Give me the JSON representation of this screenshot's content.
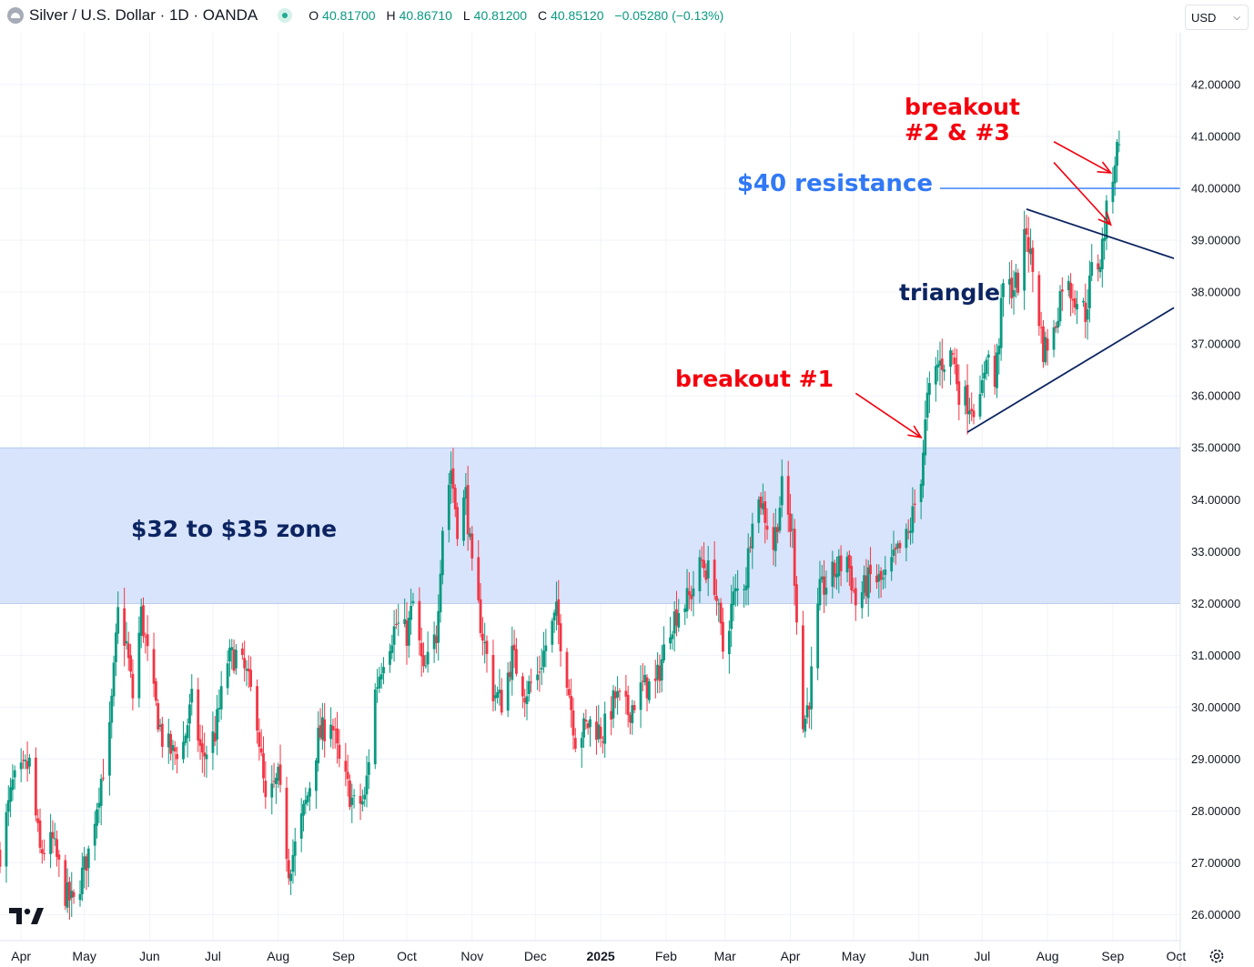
{
  "header": {
    "symbol_icon": "silver-coin-icon",
    "title": "Silver / U.S. Dollar · 1D · OANDA",
    "ohlc": {
      "o_label": "O",
      "o": "40.81700",
      "h_label": "H",
      "h": "40.86710",
      "l_label": "L",
      "l": "40.81200",
      "c_label": "C",
      "c": "40.85120",
      "change": "−0.05280 (−0.13%)"
    }
  },
  "currency_select": {
    "value": "USD"
  },
  "colors": {
    "up": "#089981",
    "down": "#f23645",
    "zone": "#d6e3fb",
    "resistance": "#3179f5",
    "annotation_red": "#f4000d",
    "annotation_navy": "#0c2461"
  },
  "chart_data": {
    "type": "candlestick",
    "instrument": "Silver / U.S. Dollar",
    "interval": "1D",
    "ylim": [
      25.5,
      43.0
    ],
    "x_range": [
      "2024-03-22",
      "2025-10-03"
    ],
    "y_ticks": [
      "42.00000",
      "41.00000",
      "40.00000",
      "39.00000",
      "38.00000",
      "37.00000",
      "36.00000",
      "35.00000",
      "34.00000",
      "33.00000",
      "32.00000",
      "31.00000",
      "30.00000",
      "29.00000",
      "28.00000",
      "27.00000",
      "26.00000"
    ],
    "x_ticks": [
      {
        "label": "Apr",
        "date": "2024-04-01"
      },
      {
        "label": "May",
        "date": "2024-05-01"
      },
      {
        "label": "Jun",
        "date": "2024-06-01"
      },
      {
        "label": "Jul",
        "date": "2024-07-01"
      },
      {
        "label": "Aug",
        "date": "2024-08-01"
      },
      {
        "label": "Sep",
        "date": "2024-09-01"
      },
      {
        "label": "Oct",
        "date": "2024-10-01"
      },
      {
        "label": "Nov",
        "date": "2024-11-01"
      },
      {
        "label": "Dec",
        "date": "2024-12-01"
      },
      {
        "label": "2025",
        "date": "2025-01-01",
        "bold": true
      },
      {
        "label": "Feb",
        "date": "2025-02-01"
      },
      {
        "label": "Mar",
        "date": "2025-03-01"
      },
      {
        "label": "Apr",
        "date": "2025-04-01"
      },
      {
        "label": "May",
        "date": "2025-05-01"
      },
      {
        "label": "Jun",
        "date": "2025-06-01"
      },
      {
        "label": "Jul",
        "date": "2025-07-01"
      },
      {
        "label": "Aug",
        "date": "2025-08-01"
      },
      {
        "label": "Sep",
        "date": "2025-09-01"
      },
      {
        "label": "Oct",
        "date": "2025-10-01"
      }
    ],
    "price_path": [
      [
        "2024-03-22",
        27.2
      ],
      [
        "2024-03-28",
        28.5
      ],
      [
        "2024-04-05",
        28.9
      ],
      [
        "2024-04-10",
        27.2
      ],
      [
        "2024-04-16",
        27.4
      ],
      [
        "2024-04-22",
        26.4
      ],
      [
        "2024-04-26",
        26.2
      ],
      [
        "2024-05-03",
        27.2
      ],
      [
        "2024-05-08",
        28.4
      ],
      [
        "2024-05-13",
        29.5
      ],
      [
        "2024-05-17",
        31.8
      ],
      [
        "2024-05-21",
        31.2
      ],
      [
        "2024-05-24",
        30.2
      ],
      [
        "2024-05-28",
        31.8
      ],
      [
        "2024-06-03",
        30.2
      ],
      [
        "2024-06-07",
        29.4
      ],
      [
        "2024-06-12",
        29.1
      ],
      [
        "2024-06-17",
        29.3
      ],
      [
        "2024-06-21",
        30.1
      ],
      [
        "2024-06-26",
        29.0
      ],
      [
        "2024-07-02",
        29.5
      ],
      [
        "2024-07-08",
        30.9
      ],
      [
        "2024-07-12",
        31.0
      ],
      [
        "2024-07-17",
        30.6
      ],
      [
        "2024-07-22",
        29.8
      ],
      [
        "2024-07-26",
        28.1
      ],
      [
        "2024-08-01",
        28.6
      ],
      [
        "2024-08-06",
        26.9
      ],
      [
        "2024-08-09",
        27.3
      ],
      [
        "2024-08-15",
        28.3
      ],
      [
        "2024-08-20",
        29.4
      ],
      [
        "2024-08-26",
        29.8
      ],
      [
        "2024-08-30",
        28.9
      ],
      [
        "2024-09-06",
        28.1
      ],
      [
        "2024-09-11",
        28.2
      ],
      [
        "2024-09-16",
        30.3
      ],
      [
        "2024-09-20",
        31.0
      ],
      [
        "2024-09-26",
        31.6
      ],
      [
        "2024-10-01",
        31.4
      ],
      [
        "2024-10-04",
        32.0
      ],
      [
        "2024-10-09",
        30.6
      ],
      [
        "2024-10-15",
        31.4
      ],
      [
        "2024-10-18",
        33.5
      ],
      [
        "2024-10-22",
        34.6
      ],
      [
        "2024-10-25",
        33.5
      ],
      [
        "2024-10-29",
        34.1
      ],
      [
        "2024-11-01",
        32.6
      ],
      [
        "2024-11-06",
        31.4
      ],
      [
        "2024-11-11",
        30.3
      ],
      [
        "2024-11-15",
        30.1
      ],
      [
        "2024-11-20",
        31.0
      ],
      [
        "2024-11-26",
        30.3
      ],
      [
        "2024-12-02",
        30.6
      ],
      [
        "2024-12-06",
        31.2
      ],
      [
        "2024-12-11",
        31.8
      ],
      [
        "2024-12-16",
        30.6
      ],
      [
        "2024-12-20",
        29.4
      ],
      [
        "2024-12-27",
        29.7
      ],
      [
        "2025-01-02",
        29.5
      ],
      [
        "2025-01-08",
        30.2
      ],
      [
        "2025-01-14",
        29.9
      ],
      [
        "2025-01-21",
        30.4
      ],
      [
        "2025-01-27",
        30.4
      ],
      [
        "2025-02-03",
        31.6
      ],
      [
        "2025-02-07",
        31.9
      ],
      [
        "2025-02-12",
        32.1
      ],
      [
        "2025-02-18",
        32.8
      ],
      [
        "2025-02-24",
        32.4
      ],
      [
        "2025-02-28",
        31.1
      ],
      [
        "2025-03-05",
        32.1
      ],
      [
        "2025-03-11",
        32.5
      ],
      [
        "2025-03-14",
        33.8
      ],
      [
        "2025-03-18",
        34.0
      ],
      [
        "2025-03-24",
        33.1
      ],
      [
        "2025-03-28",
        34.2
      ],
      [
        "2025-04-02",
        33.3
      ],
      [
        "2025-04-07",
        29.6
      ],
      [
        "2025-04-10",
        30.2
      ],
      [
        "2025-04-15",
        32.2
      ],
      [
        "2025-04-22",
        32.6
      ],
      [
        "2025-04-28",
        32.9
      ],
      [
        "2025-05-02",
        32.0
      ],
      [
        "2025-05-09",
        32.5
      ],
      [
        "2025-05-15",
        32.4
      ],
      [
        "2025-05-21",
        32.9
      ],
      [
        "2025-05-27",
        33.3
      ],
      [
        "2025-06-02",
        34.5
      ],
      [
        "2025-06-05",
        35.9
      ],
      [
        "2025-06-10",
        36.6
      ],
      [
        "2025-06-17",
        36.8
      ],
      [
        "2025-06-20",
        36.1
      ],
      [
        "2025-06-24",
        35.9
      ],
      [
        "2025-06-30",
        35.8
      ],
      [
        "2025-07-03",
        36.9
      ],
      [
        "2025-07-07",
        36.2
      ],
      [
        "2025-07-11",
        38.1
      ],
      [
        "2025-07-15",
        38.1
      ],
      [
        "2025-07-18",
        38.2
      ],
      [
        "2025-07-22",
        39.2
      ],
      [
        "2025-07-25",
        38.4
      ],
      [
        "2025-07-30",
        36.9
      ],
      [
        "2025-08-04",
        37.2
      ],
      [
        "2025-08-08",
        38.2
      ],
      [
        "2025-08-13",
        38.0
      ],
      [
        "2025-08-19",
        37.6
      ],
      [
        "2025-08-22",
        38.4
      ],
      [
        "2025-08-26",
        38.6
      ],
      [
        "2025-08-29",
        39.5
      ],
      [
        "2025-09-02",
        40.6
      ],
      [
        "2025-09-04",
        40.85
      ]
    ],
    "last_close": 40.8512,
    "zone": {
      "low": 32.0,
      "high": 35.0,
      "label": "$32 to $35 zone"
    },
    "resistance": {
      "price": 40.0,
      "label": "$40 resistance"
    },
    "triangle": {
      "label": "triangle",
      "upper": [
        [
          "2025-07-22",
          39.6
        ],
        [
          "2025-09-30",
          38.65
        ]
      ],
      "lower": [
        [
          "2025-06-24",
          35.3
        ],
        [
          "2025-09-30",
          37.7
        ]
      ]
    },
    "annotations": [
      {
        "text": "breakout #1",
        "color": "#f4000d",
        "from": [
          "2025-05-02",
          36.05
        ],
        "to": [
          "2025-06-02",
          35.2
        ]
      },
      {
        "text": "breakout",
        "text2": "#2 & #3",
        "color": "#f4000d",
        "from": [
          "2025-08-04",
          40.9
        ],
        "to": [
          "2025-08-31",
          40.3
        ],
        "from2": [
          "2025-08-04",
          40.5
        ],
        "to2": [
          "2025-08-31",
          39.3
        ]
      }
    ]
  },
  "branding": {
    "logo": "tradingview-logo-icon",
    "settings": "gear-icon"
  }
}
